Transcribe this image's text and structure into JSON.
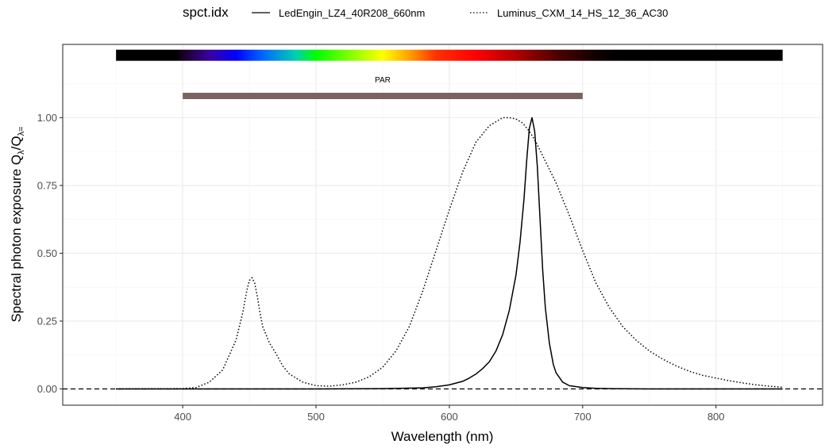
{
  "chart_data": {
    "type": "line",
    "xlabel": "Wavelength (nm)",
    "ylabel": "Spectral  photon  exposure  Qλ /Qλ=",
    "ylabel_parts": {
      "main": "Spectral  photon  exposure  Q",
      "sub1": "λ",
      "slash": "/Q",
      "sub2": "λ="
    },
    "xlim": [
      310,
      880
    ],
    "ylim": [
      -0.06,
      1.27
    ],
    "x_ticks": [
      400,
      500,
      600,
      700,
      800
    ],
    "x_tick_labels": [
      "400",
      "500",
      "600",
      "700",
      "800"
    ],
    "y_ticks": [
      0.0,
      0.25,
      0.5,
      0.75,
      1.0
    ],
    "y_tick_labels": [
      "0.00",
      "0.25",
      "0.50",
      "0.75",
      "1.00"
    ],
    "grid": true,
    "legend": {
      "title": "spct.idx",
      "placement": "top"
    },
    "hline": {
      "y": 0,
      "style": "dashed"
    },
    "annotations": {
      "color_bar": {
        "x_range": [
          350,
          850
        ],
        "y": 1.23
      },
      "par_bar": {
        "label": "PAR",
        "x_range": [
          400,
          700
        ],
        "y": 1.08,
        "color": "#7a6360"
      }
    },
    "series": [
      {
        "name": "LedEngin_LZ4_40R208_660nm",
        "linestyle": "solid",
        "x": [
          350,
          400,
          450,
          500,
          550,
          580,
          590,
          600,
          610,
          615,
          620,
          625,
          630,
          635,
          640,
          645,
          650,
          653,
          656,
          658,
          660,
          662,
          664,
          666,
          668,
          670,
          672,
          675,
          678,
          680,
          685,
          690,
          700,
          710,
          720,
          750,
          800,
          850
        ],
        "y": [
          0,
          0,
          0,
          0,
          0.001,
          0.004,
          0.008,
          0.015,
          0.028,
          0.04,
          0.055,
          0.075,
          0.1,
          0.14,
          0.2,
          0.29,
          0.42,
          0.54,
          0.7,
          0.84,
          0.96,
          1.0,
          0.95,
          0.82,
          0.63,
          0.44,
          0.3,
          0.17,
          0.09,
          0.06,
          0.025,
          0.012,
          0.005,
          0.002,
          0.001,
          0,
          0,
          0
        ]
      },
      {
        "name": "Luminus_CXM_14_HS_12_36_AC30",
        "linestyle": "dotted",
        "x": [
          350,
          400,
          410,
          420,
          430,
          440,
          445,
          448,
          450,
          452,
          454,
          456,
          458,
          460,
          465,
          470,
          475,
          480,
          490,
          500,
          510,
          520,
          530,
          540,
          550,
          560,
          570,
          580,
          590,
          600,
          610,
          620,
          630,
          640,
          645,
          650,
          655,
          660,
          665,
          670,
          680,
          690,
          700,
          710,
          720,
          730,
          740,
          750,
          760,
          770,
          780,
          790,
          800,
          810,
          820,
          830,
          840,
          850
        ],
        "y": [
          0,
          0.001,
          0.005,
          0.025,
          0.07,
          0.18,
          0.28,
          0.36,
          0.4,
          0.41,
          0.39,
          0.34,
          0.28,
          0.23,
          0.17,
          0.13,
          0.085,
          0.055,
          0.025,
          0.012,
          0.01,
          0.015,
          0.025,
          0.045,
          0.08,
          0.14,
          0.23,
          0.36,
          0.51,
          0.66,
          0.8,
          0.91,
          0.97,
          1.0,
          1.0,
          0.995,
          0.98,
          0.95,
          0.91,
          0.86,
          0.76,
          0.64,
          0.51,
          0.39,
          0.3,
          0.23,
          0.18,
          0.14,
          0.11,
          0.085,
          0.065,
          0.05,
          0.04,
          0.03,
          0.022,
          0.015,
          0.01,
          0.006
        ]
      }
    ]
  }
}
